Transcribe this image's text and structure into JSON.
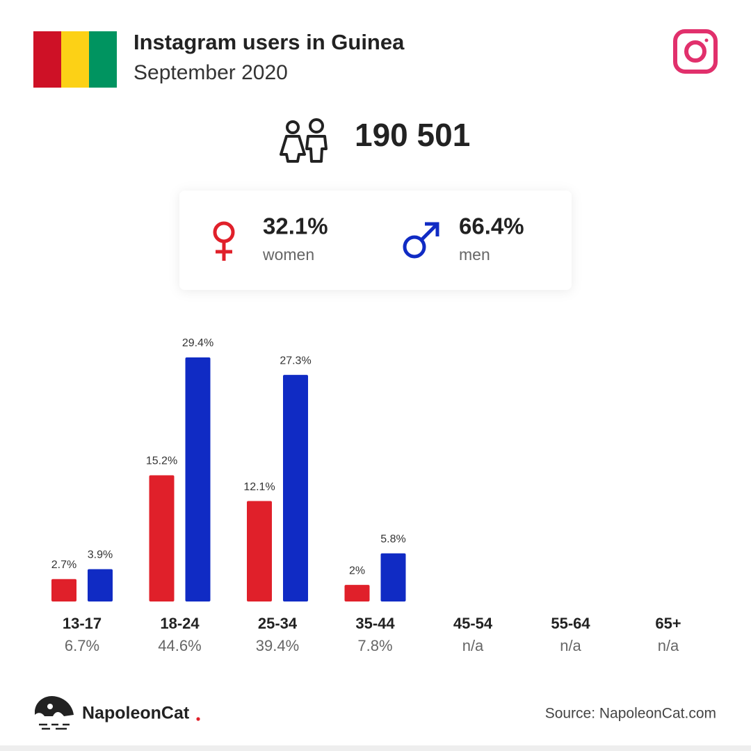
{
  "chart_data": {
    "type": "bar",
    "title": "Instagram users in Guinea",
    "subtitle": "September 2020",
    "total_users": {
      "value": 190501,
      "label": "190 501"
    },
    "categories": [
      "13-17",
      "18-24",
      "25-34",
      "35-44",
      "45-54",
      "55-64",
      "65+"
    ],
    "series": [
      {
        "name": "women",
        "color": "#e0202a",
        "share": 32.1,
        "share_label": "32.1%",
        "values": [
          2.7,
          15.2,
          12.1,
          2,
          null,
          null,
          null
        ],
        "value_labels": [
          "2.7%",
          "15.2%",
          "12.1%",
          "2%",
          null,
          null,
          null
        ]
      },
      {
        "name": "men",
        "color": "#102bc4",
        "share": 66.4,
        "share_label": "66.4%",
        "values": [
          3.9,
          29.4,
          27.3,
          5.8,
          null,
          null,
          null
        ],
        "value_labels": [
          "3.9%",
          "29.4%",
          "27.3%",
          "5.8%",
          null,
          null,
          null
        ]
      }
    ],
    "totals": {
      "values": [
        6.7,
        44.6,
        39.4,
        7.8,
        null,
        null,
        null
      ],
      "value_labels": [
        "6.7%",
        "44.6%",
        "39.4%",
        "7.8%",
        "n/a",
        "n/a",
        "n/a"
      ]
    },
    "brand": "NapoleonCat",
    "source": "Source: NapoleonCat.com"
  }
}
